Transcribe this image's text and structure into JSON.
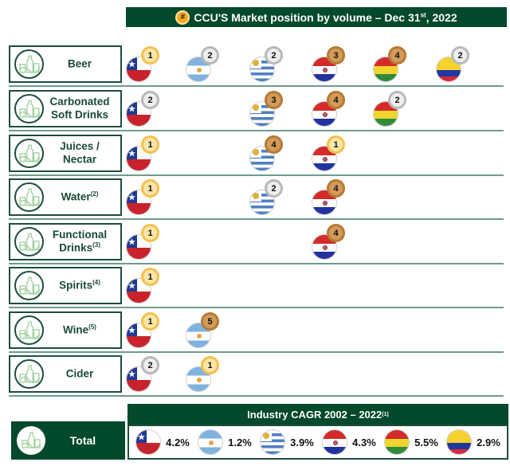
{
  "header": {
    "badge": "#",
    "title_main": "CCU'S Market position by volume – Dec 31",
    "title_sup": "st",
    "title_end": ", 2022"
  },
  "columns": [
    "Chile",
    "Argentina",
    "Uruguay",
    "Paraguay",
    "Bolivia",
    "Colombia"
  ],
  "categories": [
    {
      "label": "Beer",
      "sup": "",
      "positions": {
        "Chile": "1",
        "Argentina": "2",
        "Uruguay": "2",
        "Paraguay": "3",
        "Bolivia": "4",
        "Colombia": "2"
      }
    },
    {
      "label": "Carbonated Soft Drinks",
      "sup": "",
      "positions": {
        "Chile": "2",
        "Uruguay": "3",
        "Paraguay": "4",
        "Bolivia": "2"
      }
    },
    {
      "label": "Juices / Nectar",
      "sup": "",
      "positions": {
        "Chile": "1",
        "Uruguay": "4",
        "Paraguay": "1"
      }
    },
    {
      "label": "Water",
      "sup": "(2)",
      "positions": {
        "Chile": "1",
        "Uruguay": "2",
        "Paraguay": "4"
      }
    },
    {
      "label": "Functional Drinks",
      "sup": "(3)",
      "positions": {
        "Chile": "1",
        "Paraguay": "4"
      }
    },
    {
      "label": "Spirits",
      "sup": "(4)",
      "positions": {
        "Chile": "1"
      }
    },
    {
      "label": "Wine",
      "sup": "(5)",
      "positions": {
        "Chile": "1",
        "Argentina": "5"
      }
    },
    {
      "label": "Cider",
      "sup": "",
      "positions": {
        "Chile": "2",
        "Argentina": "1"
      }
    }
  ],
  "cagr": {
    "title": "Industry CAGR 2002 – 2022",
    "title_sup": "(1)",
    "total_label": "Total",
    "values": [
      {
        "country": "Chile",
        "value": "4.2%"
      },
      {
        "country": "Argentina",
        "value": "1.2%"
      },
      {
        "country": "Uruguay",
        "value": "3.9%"
      },
      {
        "country": "Paraguay",
        "value": "4.3%"
      },
      {
        "country": "Bolivia",
        "value": "5.5%"
      },
      {
        "country": "Colombia",
        "value": "2.9%"
      }
    ]
  },
  "colors": {
    "brand_green": "#03492c",
    "gold": "#f3c14e",
    "silver": "#b8b8b8",
    "bronze": "#b77a35"
  }
}
